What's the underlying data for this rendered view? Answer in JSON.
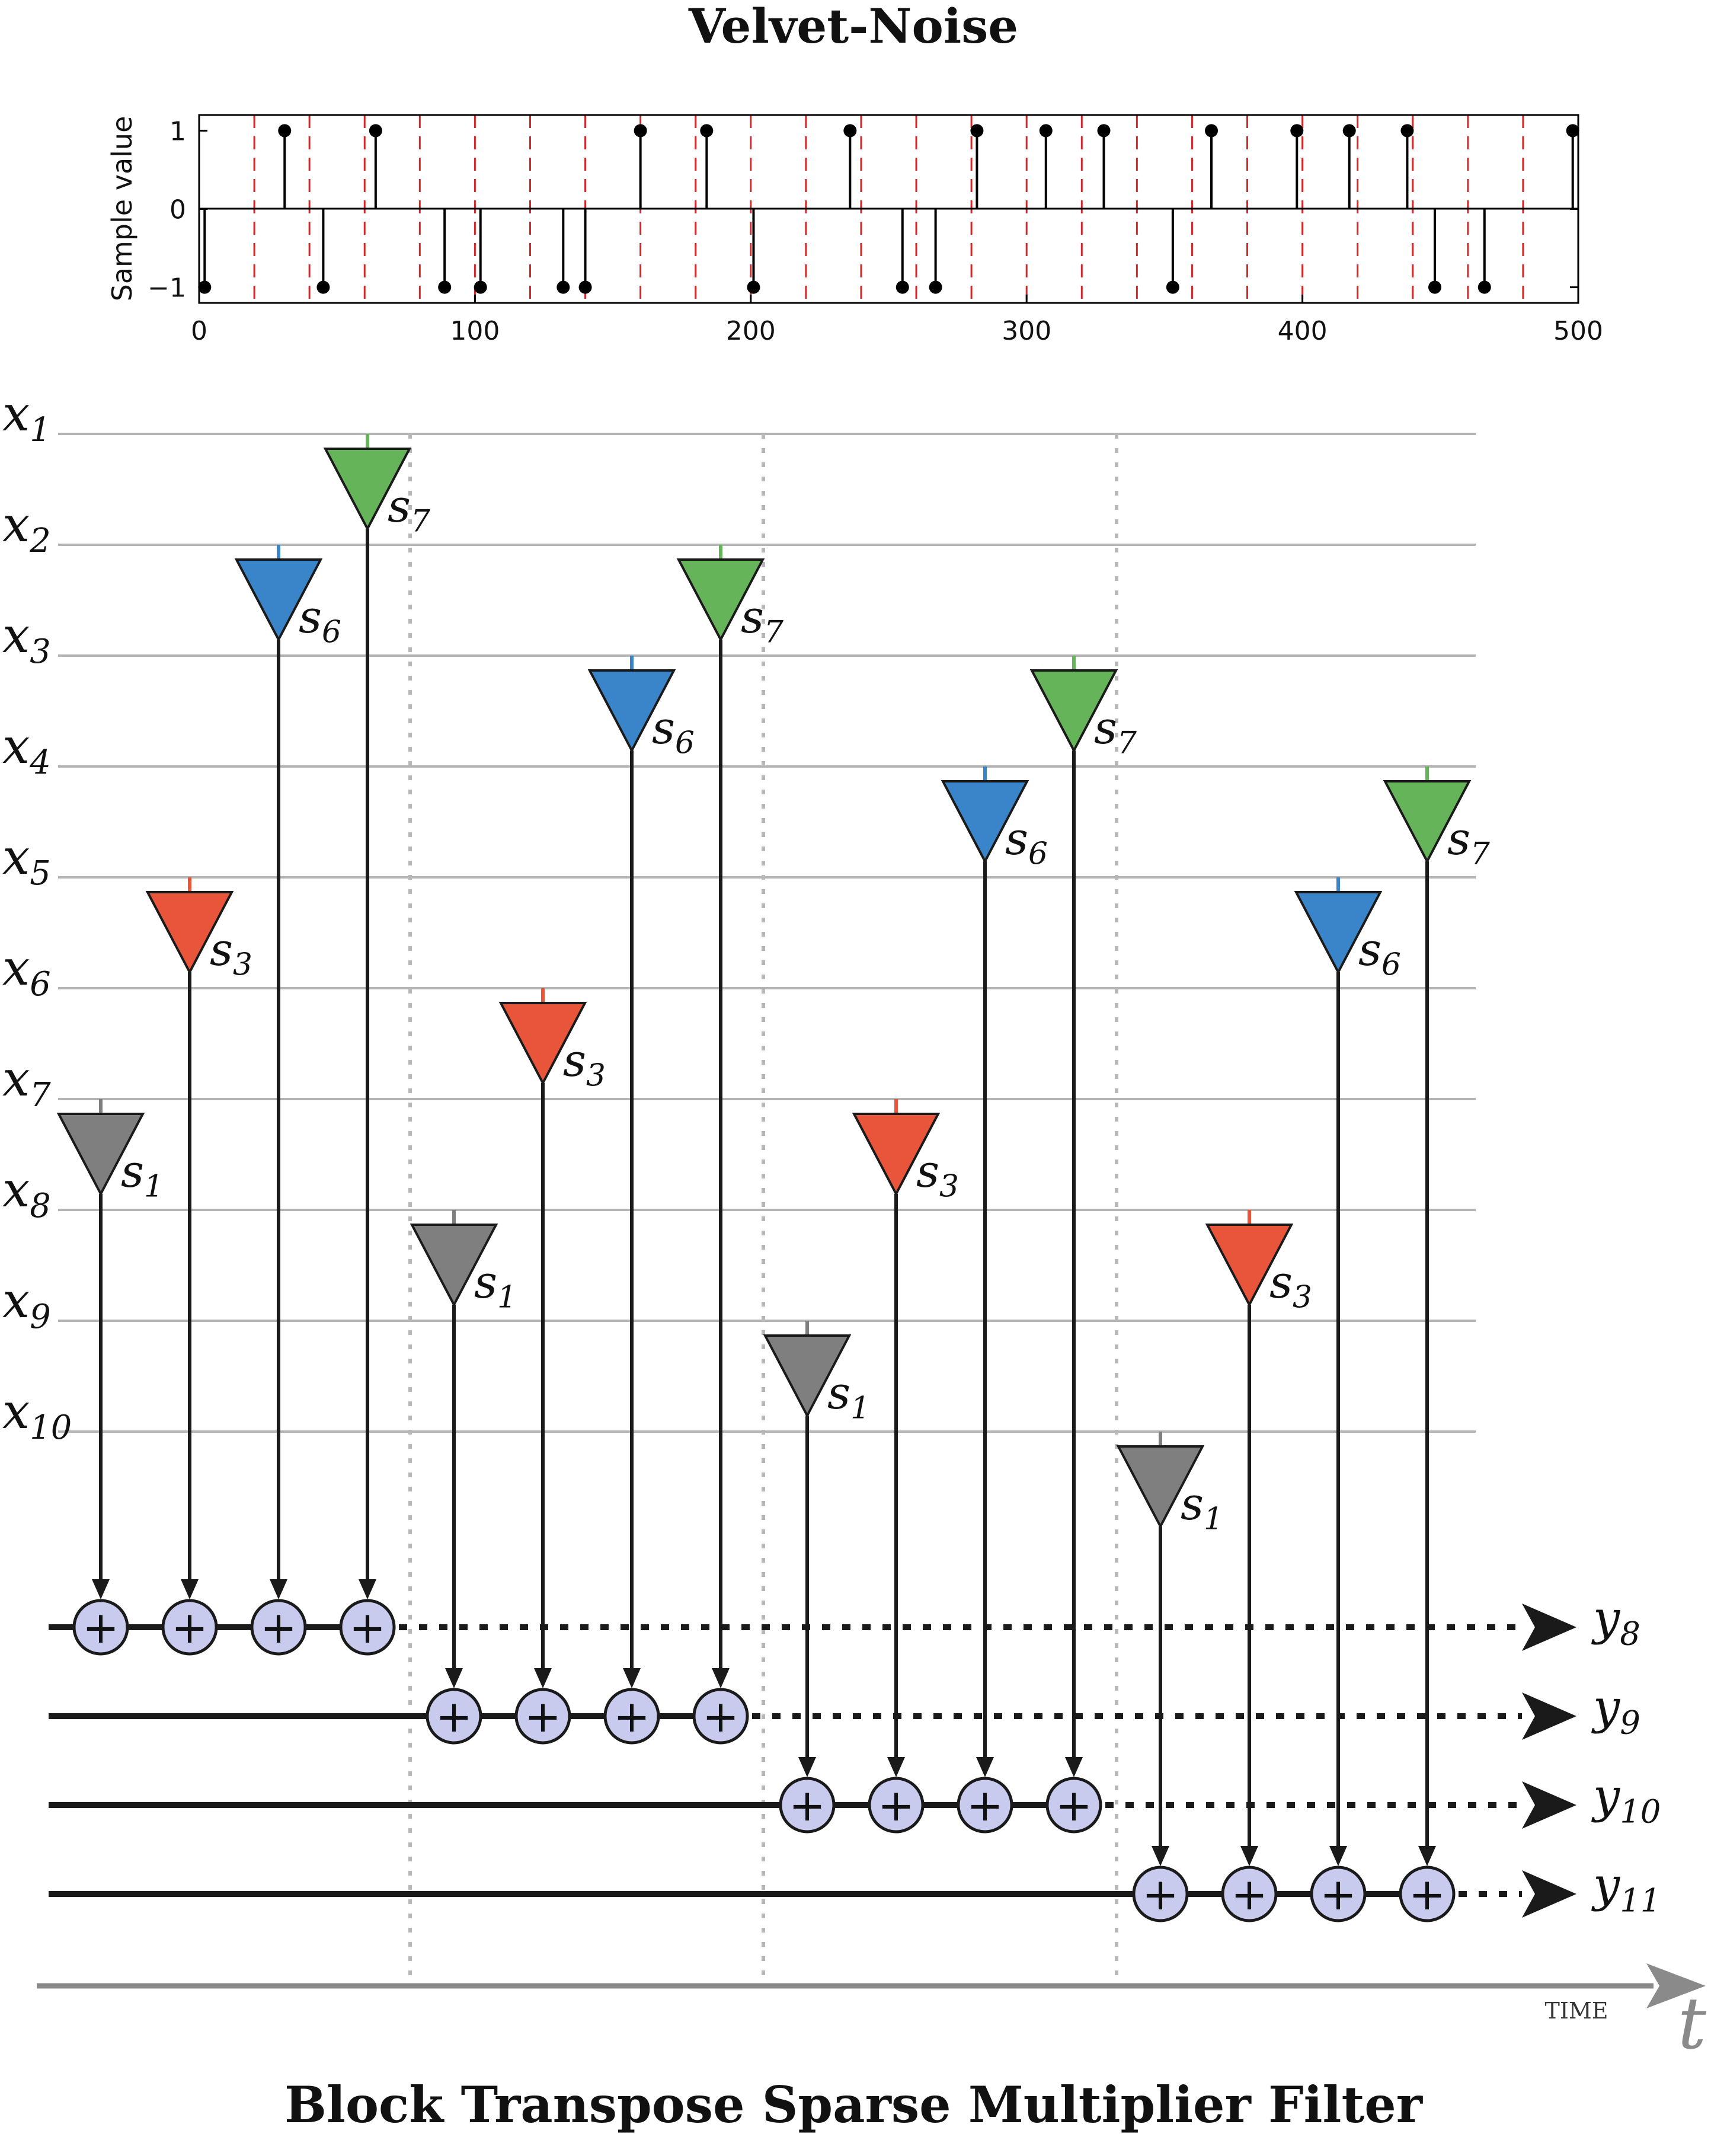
{
  "top_title": "Velvet-Noise",
  "bottom_title": "Block Transpose Sparse Multiplier Filter",
  "chart_data": {
    "type": "stem",
    "title": "Velvet-Noise",
    "xlabel": "",
    "ylabel": "Sample value",
    "xlim": [
      0,
      500
    ],
    "ylim": [
      -1.2,
      1.2
    ],
    "xticks": [
      "0",
      "100",
      "200",
      "300",
      "400",
      "500"
    ],
    "yticks": [
      "1",
      "0",
      "−1"
    ],
    "grid_interval": 20,
    "grid_color": "#d62728",
    "pulse_positions": [
      2,
      31,
      45,
      64,
      89,
      102,
      132,
      140,
      160,
      184,
      201,
      236,
      255,
      267,
      282,
      307,
      328,
      353,
      367,
      398,
      417,
      438,
      448,
      466,
      498
    ],
    "pulse_values": [
      -1,
      1,
      -1,
      1,
      -1,
      -1,
      -1,
      -1,
      1,
      1,
      -1,
      1,
      -1,
      -1,
      1,
      1,
      1,
      -1,
      1,
      1,
      1,
      1,
      -1,
      -1,
      1
    ]
  },
  "diagram": {
    "input_labels": [
      {
        "base": "x",
        "sub": "1"
      },
      {
        "base": "x",
        "sub": "2"
      },
      {
        "base": "x",
        "sub": "3"
      },
      {
        "base": "x",
        "sub": "4"
      },
      {
        "base": "x",
        "sub": "5"
      },
      {
        "base": "x",
        "sub": "6"
      },
      {
        "base": "x",
        "sub": "7"
      },
      {
        "base": "x",
        "sub": "8"
      },
      {
        "base": "x",
        "sub": "9"
      },
      {
        "base": "x",
        "sub": "10"
      }
    ],
    "output_labels": [
      {
        "base": "y",
        "sub": "8"
      },
      {
        "base": "y",
        "sub": "9"
      },
      {
        "base": "y",
        "sub": "10"
      },
      {
        "base": "y",
        "sub": "11"
      }
    ],
    "coefficients": [
      {
        "base": "s",
        "sub": "1",
        "color": "#7f7f7f"
      },
      {
        "base": "s",
        "sub": "3",
        "color": "#e8553a"
      },
      {
        "base": "s",
        "sub": "6",
        "color": "#3a84c9"
      },
      {
        "base": "s",
        "sub": "7",
        "color": "#66b45a"
      }
    ],
    "coefficient_input_offsets": [
      0,
      2,
      5,
      6
    ],
    "blocks": [
      {
        "output": 0,
        "first_input": 7
      },
      {
        "output": 1,
        "first_input": 8
      },
      {
        "output": 2,
        "first_input": 9
      },
      {
        "output": 3,
        "first_input": 10
      }
    ],
    "adder_symbol": "+",
    "adder_color": "#c8cbee",
    "time_label": "TIME",
    "time_symbol": "t"
  }
}
